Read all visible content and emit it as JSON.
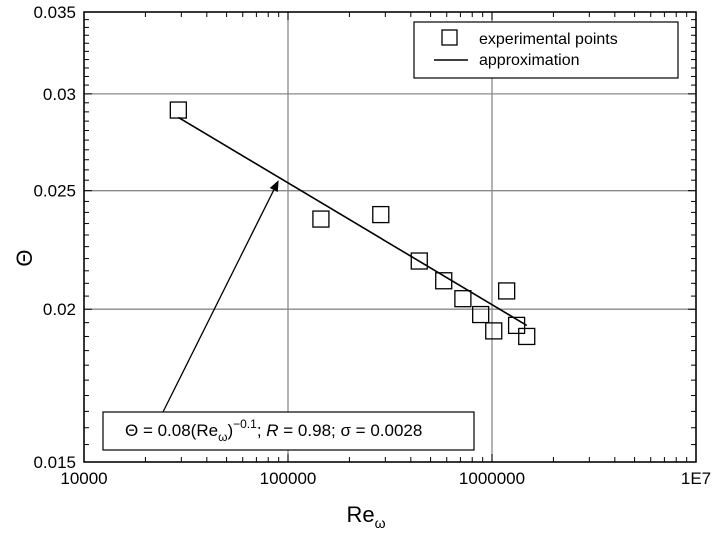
{
  "chart_data": {
    "type": "scatter",
    "x_scale": "log",
    "y_scale": "log",
    "xlim": [
      10000,
      10000000
    ],
    "ylim": [
      0.015,
      0.035
    ],
    "x_ticks": [
      {
        "value": 10000,
        "label": "10000"
      },
      {
        "value": 100000,
        "label": "100000"
      },
      {
        "value": 1000000,
        "label": "1000000"
      },
      {
        "value": 10000000,
        "label": "1E7"
      }
    ],
    "y_ticks": [
      {
        "value": 0.015,
        "label": "0.015"
      },
      {
        "value": 0.02,
        "label": "0.02"
      },
      {
        "value": 0.025,
        "label": "0.025"
      },
      {
        "value": 0.03,
        "label": "0.03"
      },
      {
        "value": 0.035,
        "label": "0.035"
      }
    ],
    "grid": true,
    "xlabel_main": "Re",
    "xlabel_sub": "ω",
    "ylabel": "Θ",
    "legend": {
      "placement": "top-right",
      "entries": [
        {
          "label": "experimental points",
          "marker": "square"
        },
        {
          "label": "approximation",
          "marker": "line"
        }
      ]
    },
    "series": [
      {
        "name": "experimental points",
        "marker": "square",
        "points": [
          {
            "x": 29000,
            "y": 0.0291
          },
          {
            "x": 145000,
            "y": 0.0237
          },
          {
            "x": 285000,
            "y": 0.0239
          },
          {
            "x": 440000,
            "y": 0.0219
          },
          {
            "x": 580000,
            "y": 0.0211
          },
          {
            "x": 720000,
            "y": 0.0204
          },
          {
            "x": 880000,
            "y": 0.0198
          },
          {
            "x": 1020000,
            "y": 0.0192
          },
          {
            "x": 1180000,
            "y": 0.0207
          },
          {
            "x": 1320000,
            "y": 0.0194
          },
          {
            "x": 1480000,
            "y": 0.019
          }
        ]
      },
      {
        "name": "approximation",
        "type": "line",
        "points": [
          {
            "x": 29000,
            "y": 0.0287
          },
          {
            "x": 1480000,
            "y": 0.0194
          }
        ]
      }
    ],
    "annotation": {
      "prefix": "Θ = 0.08(Re",
      "sub": "ω",
      "paren": ")",
      "sup": "−0.1",
      "r_label": "; ",
      "r_var": "R",
      "r_value": " = 0.98; σ = 0.0028",
      "arrow_to": {
        "x": 90000,
        "y": 0.0255
      }
    }
  }
}
